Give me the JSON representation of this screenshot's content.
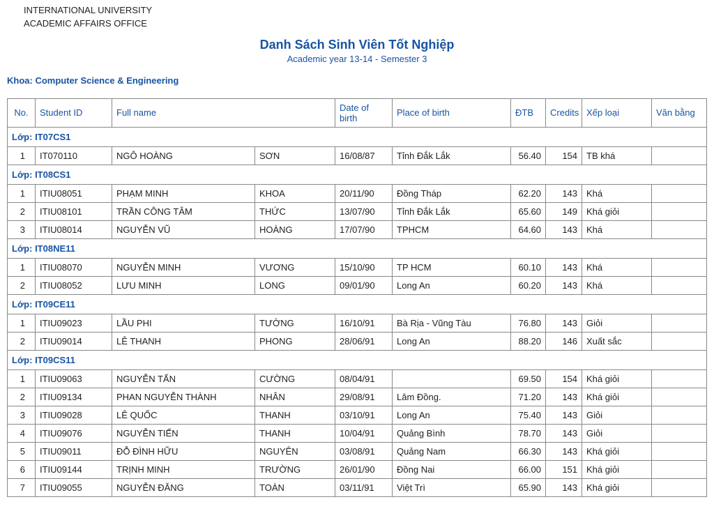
{
  "header": {
    "line1": "INTERNATIONAL UNIVERSITY",
    "line2": "ACADEMIC AFFAIRS OFFICE"
  },
  "title": {
    "main": "Danh Sách Sinh Viên Tốt Nghiệp",
    "sub": "Academic year 13-14 - Semester 3"
  },
  "department": "Khoa: Computer Science & Engineering",
  "columns": {
    "no": "No.",
    "student_id": "Student ID",
    "full_name": "Full name",
    "dob": "Date of birth",
    "pob": "Place of birth",
    "dtb": "ĐTB",
    "credits": "Credits",
    "rank": "Xếp loại",
    "degree": "Văn bằng"
  },
  "class_label_prefix": "Lớp: ",
  "groups": [
    {
      "class": "IT07CS1",
      "rows": [
        {
          "no": "1",
          "sid": "IT070110",
          "name1": "NGÔ HOÀNG",
          "name2": "SƠN",
          "dob": "16/08/87",
          "pob": "Tỉnh Đắk Lắk",
          "dtb": "56.40",
          "credits": "154",
          "rank": "TB khá",
          "degree": ""
        }
      ]
    },
    {
      "class": "IT08CS1",
      "rows": [
        {
          "no": "1",
          "sid": "ITIU08051",
          "name1": "PHẠM MINH",
          "name2": "KHOA",
          "dob": "20/11/90",
          "pob": "Đồng Tháp",
          "dtb": "62.20",
          "credits": "143",
          "rank": "Khá",
          "degree": ""
        },
        {
          "no": "2",
          "sid": "ITIU08101",
          "name1": "TRẦN CÔNG TÂM",
          "name2": "THỨC",
          "dob": "13/07/90",
          "pob": "Tỉnh Đắk Lắk",
          "dtb": "65.60",
          "credits": "149",
          "rank": "Khá giỏi",
          "degree": ""
        },
        {
          "no": "3",
          "sid": "ITIU08014",
          "name1": "NGUYỄN VŨ",
          "name2": "HOÀNG",
          "dob": "17/07/90",
          "pob": "TPHCM",
          "dtb": "64.60",
          "credits": "143",
          "rank": "Khá",
          "degree": ""
        }
      ]
    },
    {
      "class": "IT08NE11",
      "rows": [
        {
          "no": "1",
          "sid": "ITIU08070",
          "name1": "NGUYỄN MINH",
          "name2": "VƯƠNG",
          "dob": "15/10/90",
          "pob": "TP HCM",
          "dtb": "60.10",
          "credits": "143",
          "rank": "Khá",
          "degree": ""
        },
        {
          "no": "2",
          "sid": "ITIU08052",
          "name1": "LƯU MINH",
          "name2": "LONG",
          "dob": "09/01/90",
          "pob": "Long An",
          "dtb": "60.20",
          "credits": "143",
          "rank": "Khá",
          "degree": ""
        }
      ]
    },
    {
      "class": "IT09CE11",
      "rows": [
        {
          "no": "1",
          "sid": "ITIU09023",
          "name1": "LẦU PHI",
          "name2": "TƯỜNG",
          "dob": "16/10/91",
          "pob": "Bà Rịa - Vũng Tàu",
          "dtb": "76.80",
          "credits": "143",
          "rank": "Giỏi",
          "degree": ""
        },
        {
          "no": "2",
          "sid": "ITIU09014",
          "name1": "LÊ THANH",
          "name2": "PHONG",
          "dob": "28/06/91",
          "pob": "Long An",
          "dtb": "88.20",
          "credits": "146",
          "rank": "Xuất sắc",
          "degree": ""
        }
      ]
    },
    {
      "class": "IT09CS11",
      "rows": [
        {
          "no": "1",
          "sid": "ITIU09063",
          "name1": "NGUYỄN TẤN",
          "name2": "CƯỜNG",
          "dob": "08/04/91",
          "pob": "",
          "dtb": "69.50",
          "credits": "154",
          "rank": "Khá giỏi",
          "degree": ""
        },
        {
          "no": "2",
          "sid": "ITIU09134",
          "name1": "PHAN NGUYỄN THÀNH",
          "name2": "NHÂN",
          "dob": "29/08/91",
          "pob": "Lâm Đồng.",
          "dtb": "71.20",
          "credits": "143",
          "rank": "Khá giỏi",
          "degree": ""
        },
        {
          "no": "3",
          "sid": "ITIU09028",
          "name1": "LÊ QUỐC",
          "name2": "THANH",
          "dob": "03/10/91",
          "pob": "Long An",
          "dtb": "75.40",
          "credits": "143",
          "rank": "Giỏi",
          "degree": ""
        },
        {
          "no": "4",
          "sid": "ITIU09076",
          "name1": "NGUYỄN TIẾN",
          "name2": "THANH",
          "dob": "10/04/91",
          "pob": "Quảng Bình",
          "dtb": "78.70",
          "credits": "143",
          "rank": "Giỏi",
          "degree": ""
        },
        {
          "no": "5",
          "sid": "ITIU09011",
          "name1": "ĐỖ ĐÌNH HỮU",
          "name2": "NGUYÊN",
          "dob": "03/08/91",
          "pob": "Quảng Nam",
          "dtb": "66.30",
          "credits": "143",
          "rank": "Khá giỏi",
          "degree": ""
        },
        {
          "no": "6",
          "sid": "ITIU09144",
          "name1": "TRỊNH MINH",
          "name2": "TRƯỜNG",
          "dob": "26/01/90",
          "pob": "Đồng Nai",
          "dtb": "66.00",
          "credits": "151",
          "rank": "Khá giỏi",
          "degree": ""
        },
        {
          "no": "7",
          "sid": "ITIU09055",
          "name1": "NGUYỄN ĐĂNG",
          "name2": "TOÀN",
          "dob": "03/11/91",
          "pob": "Việt Trì",
          "dtb": "65.90",
          "credits": "143",
          "rank": "Khá giỏi",
          "degree": ""
        }
      ]
    }
  ],
  "styling": {
    "accent_color": "#1854a3",
    "border_color": "#888888",
    "body_font_size": 13,
    "title_font_size": 18,
    "background": "#ffffff"
  }
}
